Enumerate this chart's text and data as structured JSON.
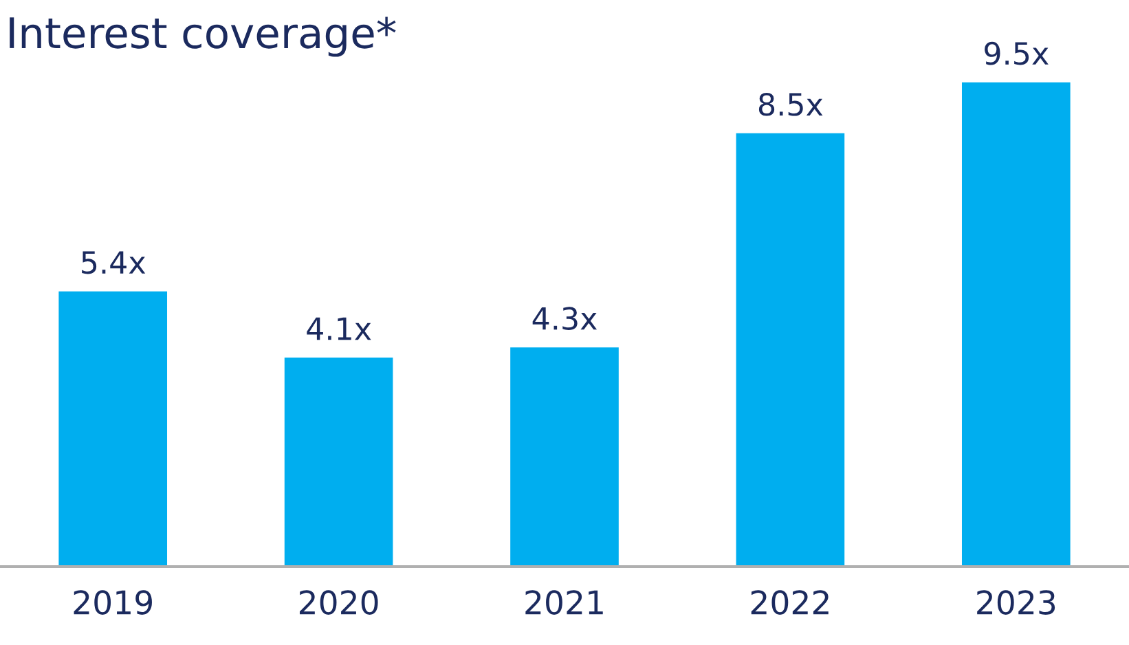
{
  "chart_data": {
    "type": "bar",
    "title": "Interest coverage*",
    "categories": [
      "2019",
      "2020",
      "2021",
      "2022",
      "2023"
    ],
    "values": [
      5.4,
      4.1,
      4.3,
      8.5,
      9.5
    ],
    "value_labels": [
      "5.4x",
      "4.1x",
      "4.3x",
      "8.5x",
      "9.5x"
    ],
    "color": "#00aeef"
  }
}
